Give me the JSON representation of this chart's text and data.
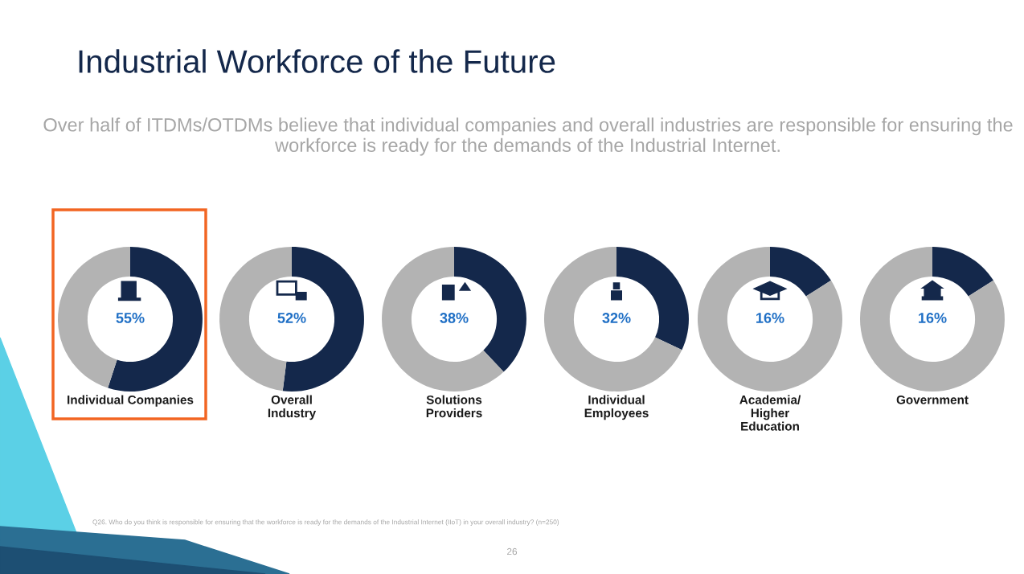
{
  "chart_data": [
    {
      "type": "other",
      "title": "Industrial Workforce of the Future",
      "subtitle": "Over half of ITDMs/OTDMs believe that individual companies and overall industries are responsible for ensuring the workforce is ready for the demands of the Industrial Internet.",
      "annotations": [
        "Q26. Who do you think is responsible for ensuring that the workforce is ready for the demands of the Industrial Internet (IIoT) in your overall industry? (n=250)",
        "26"
      ]
    },
    {
      "type": "donut",
      "xlabel": "Individual Companies",
      "categories": [
        null,
        null
      ],
      "values": [
        55,
        45
      ],
      "colors": [
        "#14284b",
        "#b3b3b3"
      ],
      "value_labels": [
        "55%",
        null
      ]
    },
    {
      "type": "donut",
      "xlabel": "Overall\nIndustry",
      "categories": [
        null,
        null
      ],
      "values": [
        52,
        48
      ],
      "colors": [
        "#14284b",
        "#b3b3b3"
      ],
      "value_labels": [
        "52%",
        null
      ]
    },
    {
      "type": "donut",
      "xlabel": "Solutions\nProviders",
      "categories": [
        null,
        null
      ],
      "values": [
        38,
        62
      ],
      "colors": [
        "#14284b",
        "#b3b3b3"
      ],
      "value_labels": [
        "38%",
        null
      ]
    },
    {
      "type": "donut",
      "xlabel": "Individual\nEmployees",
      "categories": [
        null,
        null
      ],
      "values": [
        32,
        68
      ],
      "colors": [
        "#14284b",
        "#b3b3b3"
      ],
      "value_labels": [
        "32%",
        null
      ]
    },
    {
      "type": "donut",
      "xlabel": "Academia/\nHigher\nEducation",
      "categories": [
        null,
        null
      ],
      "values": [
        16,
        84
      ],
      "colors": [
        "#14284b",
        "#b3b3b3"
      ],
      "value_labels": [
        "16%",
        null
      ]
    },
    {
      "type": "donut",
      "xlabel": "Government",
      "categories": [
        null,
        null
      ],
      "values": [
        16,
        84
      ],
      "colors": [
        "#14284b",
        "#b3b3b3"
      ],
      "value_labels": [
        "16%",
        null
      ]
    }
  ]
}
